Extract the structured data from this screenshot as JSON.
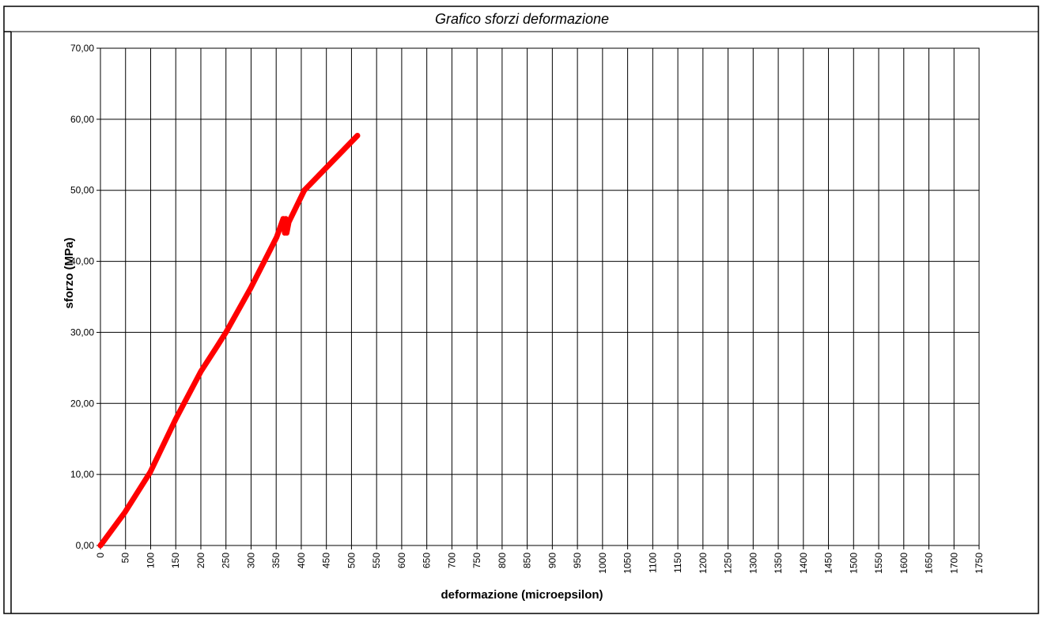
{
  "chart_data": {
    "type": "line",
    "title": "Grafico sforzi deformazione",
    "x_label": "deformazione (microepsilon)",
    "y_label": "sforzo (MPa)",
    "x": [
      0,
      49,
      99,
      150,
      200,
      233,
      250,
      299,
      351,
      364,
      367,
      369,
      371,
      375,
      406,
      512
    ],
    "values": [
      0,
      4.7,
      10.3,
      17.8,
      24.5,
      28.1,
      30,
      36.2,
      43.4,
      46,
      44,
      46,
      44,
      45.5,
      50,
      57.7
    ],
    "color": "#ff0000",
    "xlim": [
      0,
      1750
    ],
    "xticks": [
      0,
      50,
      100,
      150,
      200,
      250,
      300,
      350,
      400,
      450,
      500,
      550,
      600,
      650,
      700,
      750,
      800,
      850,
      900,
      950,
      1000,
      1050,
      1100,
      1150,
      1200,
      1250,
      1300,
      1350,
      1400,
      1450,
      1500,
      1550,
      1600,
      1650,
      1700,
      1750
    ],
    "ylim": [
      0,
      70
    ],
    "yticks": [
      {
        "value": 0,
        "label": "0,00"
      },
      {
        "value": 10,
        "label": "10,00"
      },
      {
        "value": 20,
        "label": "20,00"
      },
      {
        "value": 30,
        "label": "30,00"
      },
      {
        "value": 40,
        "label": "40,00"
      },
      {
        "value": 50,
        "label": "50,00"
      },
      {
        "value": 60,
        "label": "60,00"
      },
      {
        "value": 70,
        "label": "70,00"
      }
    ],
    "grid": true
  }
}
